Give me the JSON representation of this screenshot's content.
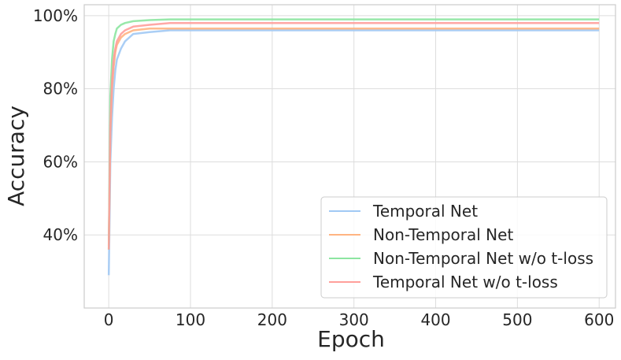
{
  "chart_data": {
    "type": "line",
    "title": "",
    "xlabel": "Epoch",
    "ylabel": "Accuracy",
    "xlim": [
      -30,
      620
    ],
    "ylim": [
      0.2,
      1.03
    ],
    "xticks": [
      0,
      100,
      200,
      300,
      400,
      500,
      600
    ],
    "xtick_labels": [
      "0",
      "100",
      "200",
      "300",
      "400",
      "500",
      "600"
    ],
    "yticks": [
      0.4,
      0.6,
      0.8,
      1.0
    ],
    "ytick_labels": [
      "40%",
      "60%",
      "80%",
      "100%"
    ],
    "grid": true,
    "legend_position": "lower-right",
    "series": [
      {
        "name": "Temporal Net",
        "color": "#a1c9f4",
        "x": [
          0,
          2,
          4,
          6,
          8,
          10,
          15,
          20,
          30,
          50,
          75,
          100,
          150,
          200,
          250,
          300,
          350,
          400,
          450,
          500,
          550,
          600
        ],
        "y": [
          0.29,
          0.6,
          0.72,
          0.8,
          0.85,
          0.88,
          0.91,
          0.93,
          0.95,
          0.955,
          0.96,
          0.96,
          0.96,
          0.96,
          0.96,
          0.96,
          0.96,
          0.96,
          0.96,
          0.96,
          0.96,
          0.96
        ]
      },
      {
        "name": "Non-Temporal Net",
        "color": "#ffb482",
        "x": [
          0,
          2,
          4,
          6,
          8,
          10,
          15,
          20,
          30,
          50,
          75,
          100,
          150,
          200,
          250,
          300,
          350,
          400,
          450,
          500,
          550,
          600
        ],
        "y": [
          0.37,
          0.68,
          0.8,
          0.86,
          0.9,
          0.92,
          0.94,
          0.95,
          0.96,
          0.965,
          0.965,
          0.965,
          0.965,
          0.965,
          0.965,
          0.965,
          0.965,
          0.965,
          0.965,
          0.965,
          0.965,
          0.965
        ]
      },
      {
        "name": "Non-Temporal Net w/o t-loss",
        "color": "#8de5a1",
        "x": [
          0,
          2,
          4,
          6,
          8,
          10,
          15,
          20,
          30,
          50,
          75,
          100,
          150,
          200,
          250,
          300,
          350,
          400,
          450,
          500,
          550,
          600
        ],
        "y": [
          0.36,
          0.78,
          0.88,
          0.93,
          0.95,
          0.965,
          0.975,
          0.98,
          0.985,
          0.988,
          0.99,
          0.99,
          0.99,
          0.99,
          0.99,
          0.99,
          0.99,
          0.99,
          0.99,
          0.99,
          0.99,
          0.99
        ]
      },
      {
        "name": "Temporal Net w/o t-loss",
        "color": "#ff9f9b",
        "x": [
          0,
          2,
          4,
          6,
          8,
          10,
          15,
          20,
          30,
          50,
          75,
          100,
          150,
          200,
          250,
          300,
          350,
          400,
          450,
          500,
          550,
          600
        ],
        "y": [
          0.36,
          0.7,
          0.82,
          0.88,
          0.91,
          0.93,
          0.95,
          0.96,
          0.97,
          0.975,
          0.98,
          0.98,
          0.98,
          0.98,
          0.98,
          0.98,
          0.98,
          0.98,
          0.98,
          0.98,
          0.98,
          0.98
        ]
      }
    ]
  }
}
